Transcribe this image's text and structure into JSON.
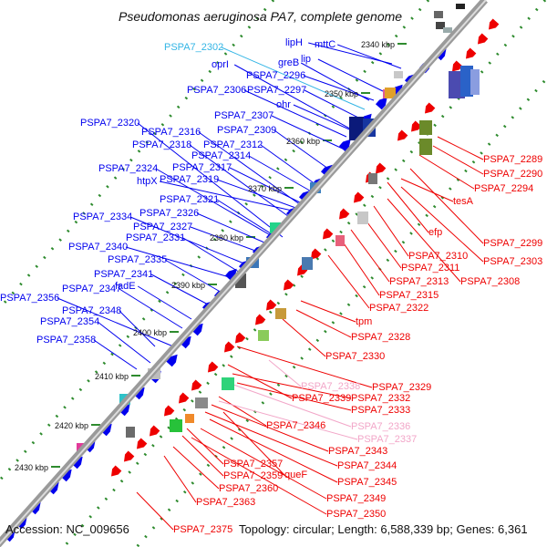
{
  "title": "Pseudomonas aeruginosa PA7, complete genome",
  "accession": "Accession: NC_009656",
  "info": "Topology: circular; Length: 6,588,339 bp; Genes: 6,361",
  "colors": {
    "backbone": "#7d7d7d",
    "tick": "#2e8b2e",
    "forward_gene": "#0000ee",
    "reverse_gene": "#ee0000",
    "rna_label": "#33b5e5",
    "pseudo_label": "#f2a6c8"
  },
  "kbp_ticks": [
    "2340 kbp",
    "2350 kbp",
    "2360 kbp",
    "2370 kbp",
    "2380 kbp",
    "2390 kbp",
    "2400 kbp",
    "2410 kbp",
    "2420 kbp",
    "2430 kbp"
  ],
  "forward_labels": [
    "PSPA7_2302",
    "lipH",
    "mttC",
    "oprI",
    "PSPA7_2296",
    "greB",
    "lip",
    "PSPA7_2306",
    "PSPA7_2297",
    "ohr",
    "PSPA7_2307",
    "PSPA7_2320",
    "PSPA7_2309",
    "PSPA7_2316",
    "PSPA7_2318",
    "PSPA7_2312",
    "PSPA7_2314",
    "PSPA7_2317",
    "PSPA7_2324",
    "htpX",
    "PSPA7_2319",
    "PSPA7_2321",
    "PSPA7_2326",
    "PSPA7_2334",
    "PSPA7_2327",
    "PSPA7_2331",
    "PSPA7_2340",
    "PSPA7_2335",
    "PSPA7_2341",
    "fadE",
    "PSPA7_2347",
    "PSPA7_2356",
    "PSPA7_2348",
    "PSPA7_2354",
    "PSPA7_2358"
  ],
  "reverse_labels": [
    "PSPA7_2289",
    "PSPA7_2290",
    "PSPA7_2294",
    "tesA",
    "efp",
    "PSPA7_2299",
    "PSPA7_2310",
    "PSPA7_2303",
    "PSPA7_2311",
    "PSPA7_2313",
    "PSPA7_2308",
    "PSPA7_2315",
    "PSPA7_2322",
    "tpm",
    "PSPA7_2328",
    "PSPA7_2330",
    "PSPA7_2338",
    "PSPA7_2329",
    "PSPA7_2339",
    "PSPA7_2332",
    "PSPA7_2333",
    "PSPA7_2336",
    "PSPA7_2346",
    "PSPA7_2337",
    "PSPA7_2343",
    "PSPA7_2344",
    "PSPA7_2357",
    "queF",
    "PSPA7_2359",
    "PSPA7_2345",
    "PSPA7_2360",
    "PSPA7_2349",
    "PSPA7_2363",
    "PSPA7_2350",
    "PSPA7_2375"
  ]
}
